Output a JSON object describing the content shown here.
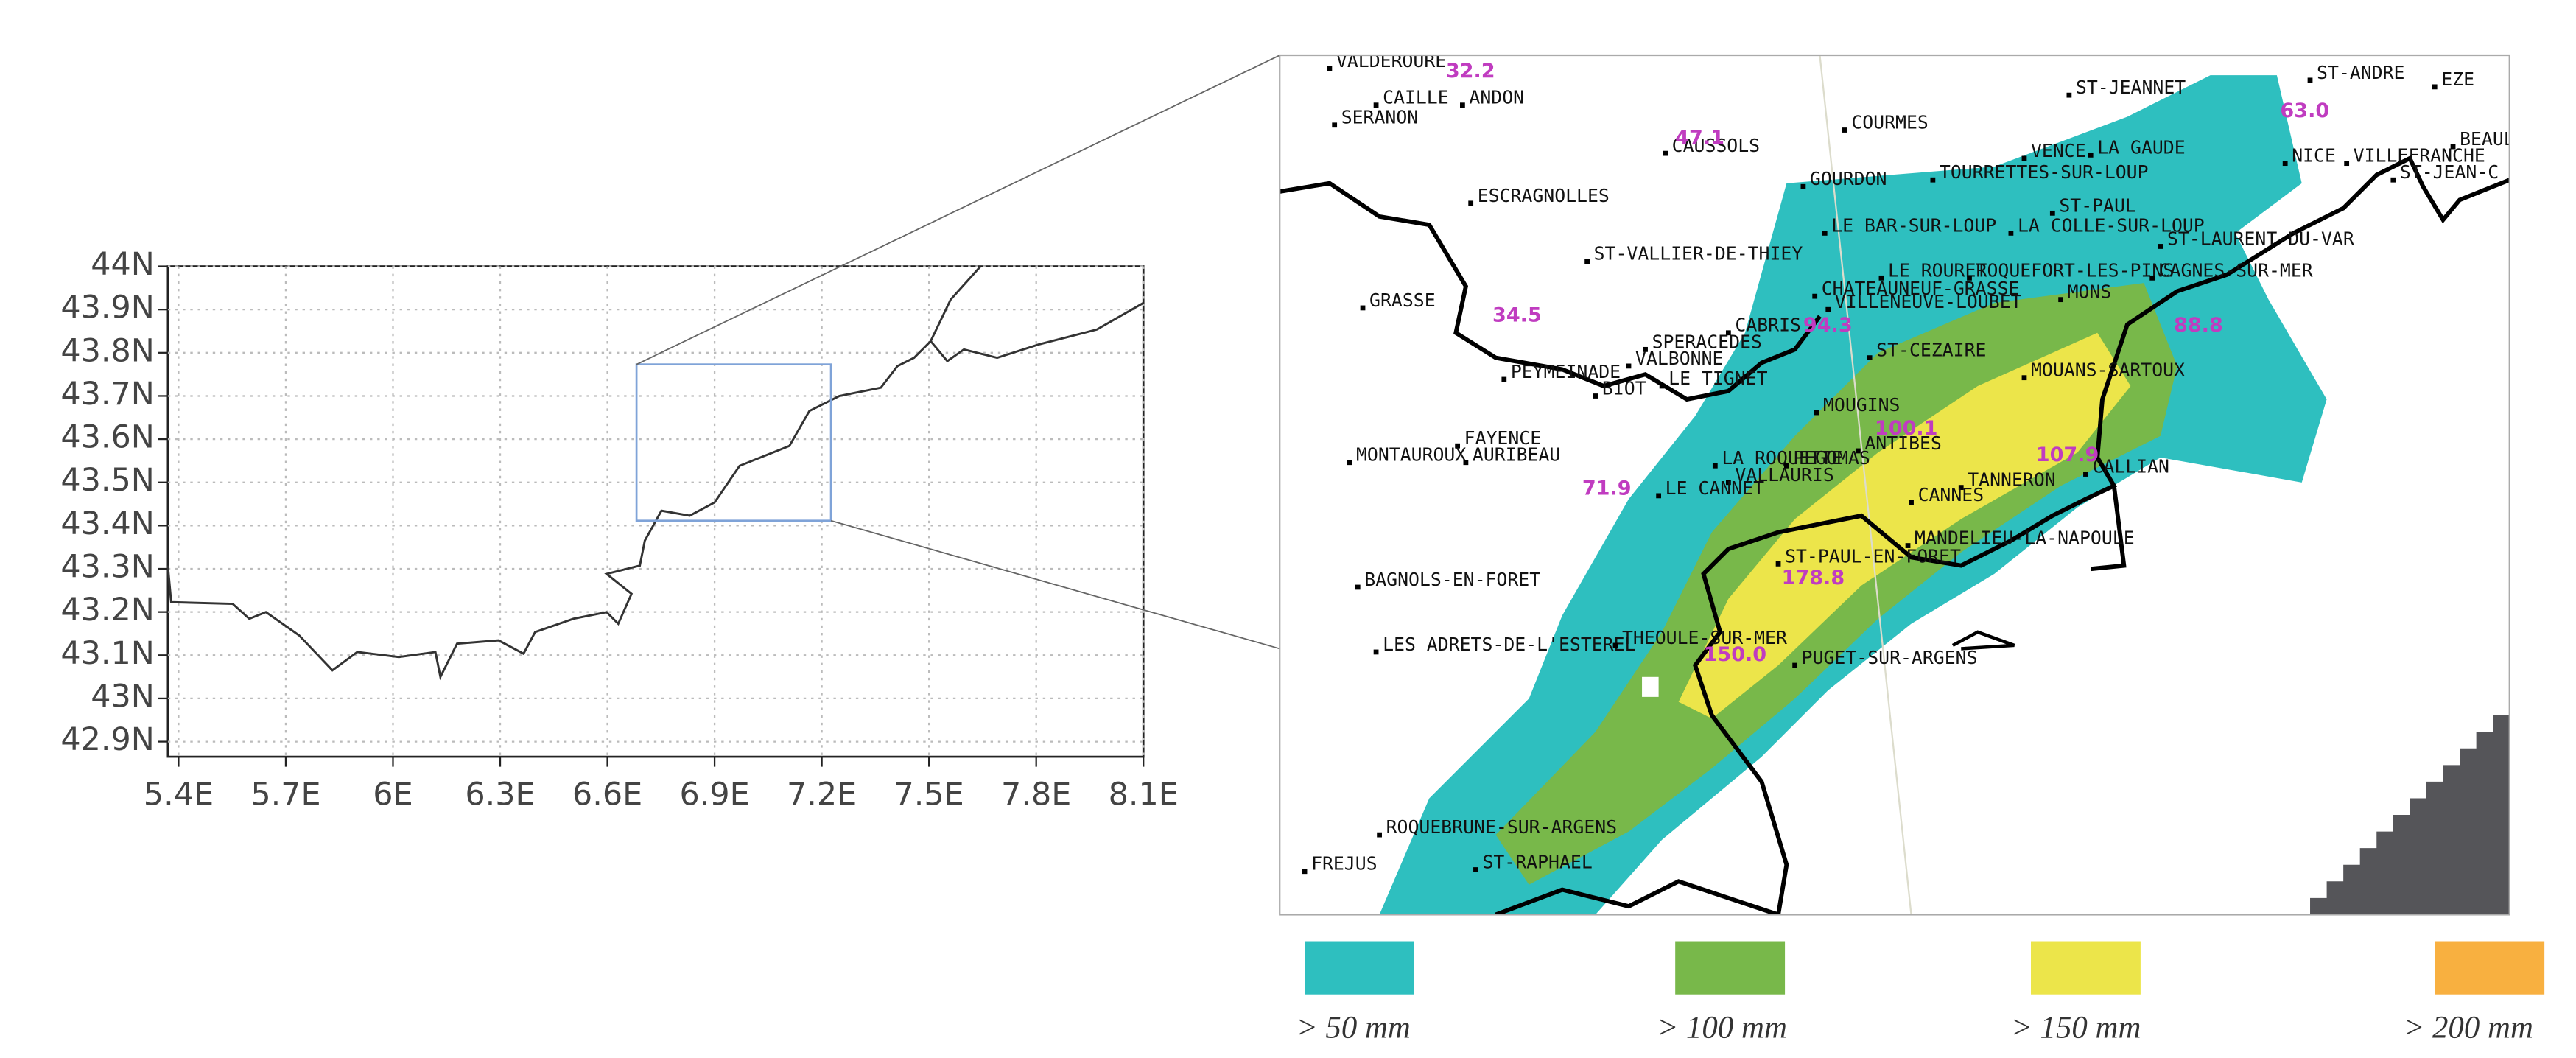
{
  "overview_map": {
    "xlim": [
      5.37,
      8.1
    ],
    "ylim": [
      42.865,
      44
    ],
    "xticks": [
      {
        "value": 5.4,
        "label": "5.4E"
      },
      {
        "value": 5.7,
        "label": "5.7E"
      },
      {
        "value": 6,
        "label": "6E"
      },
      {
        "value": 6.3,
        "label": "6.3E"
      },
      {
        "value": 6.6,
        "label": "6.6E"
      },
      {
        "value": 6.9,
        "label": "6.9E"
      },
      {
        "value": 7.2,
        "label": "7.2E"
      },
      {
        "value": 7.5,
        "label": "7.5E"
      },
      {
        "value": 7.8,
        "label": "7.8E"
      },
      {
        "value": 8.1,
        "label": "8.1E"
      }
    ],
    "yticks": [
      {
        "value": 42.9,
        "label": "42.9N"
      },
      {
        "value": 43,
        "label": "43N"
      },
      {
        "value": 43.1,
        "label": "43.1N"
      },
      {
        "value": 43.2,
        "label": "43.2N"
      },
      {
        "value": 43.3,
        "label": "43.3N"
      },
      {
        "value": 43.4,
        "label": "43.4N"
      },
      {
        "value": 43.5,
        "label": "43.5N"
      },
      {
        "value": 43.6,
        "label": "43.6N"
      },
      {
        "value": 43.7,
        "label": "43.7N"
      },
      {
        "value": 43.8,
        "label": "43.8N"
      },
      {
        "value": 43.9,
        "label": "43.9N"
      },
      {
        "value": 44,
        "label": "44N"
      }
    ],
    "grid": true
  },
  "detail_map": {
    "towns": [
      "VALDEROURE",
      "CAILLE",
      "ANDON",
      "SERANON",
      "CAUSSOLS",
      "COURMES",
      "ST-JEANNET",
      "ST-ANDRE",
      "EZE",
      "VENCE",
      "LA GAUDE",
      "NICE",
      "VILLEFRANCHE",
      "BEAULIEU",
      "ST-JEAN-C",
      "GOURDON",
      "TOURRETTES-SUR-LOUP",
      "ESCRAGNOLLES",
      "ST-PAUL",
      "LE BAR-SUR-LOUP",
      "LA COLLE-SUR-LOUP",
      "ST-LAURENT-DU-VAR",
      "ST-VALLIER-DE-THIEY",
      "LE ROURET",
      "ROQUEFORT-LES-PINS",
      "CAGNES-SUR-MER",
      "CHATEAUNEUF-GRASSE",
      "VILLENEUVE-LOUBET",
      "MONS",
      "GRASSE",
      "CABRIS",
      "SPERACEDES",
      "VALBONNE",
      "ST-CEZAIRE",
      "PEYMEINADE",
      "LE TIGNET",
      "BIOT",
      "MOUANS-SARTOUX",
      "MOUGINS",
      "ANTIBES",
      "CALLIAN",
      "FAYENCE",
      "MONTAUROUX",
      "AURIBEAU",
      "LA ROQUETTE",
      "PEGOMAS",
      "VALLAURIS",
      "TANNERON",
      "LE CANNET",
      "CANNES",
      "MANDELIEU-LA-NAPOULE",
      "ST-PAUL-EN-FORET",
      "BAGNOLS-EN-FORET",
      "LES ADRETS-DE-L'ESTEREL",
      "THEOULE-SUR-MER",
      "PUGET-SUR-ARGENS",
      "ROQUEBRUNE-SUR-ARGENS",
      "FREJUS",
      "ST-RAPHAEL"
    ],
    "rain_labels": [
      "32.2",
      "47.1",
      "34.5",
      "63.0",
      "88.8",
      "94.3",
      "100.1",
      "107.9",
      "71.9",
      "178.8",
      "150.0"
    ]
  },
  "legend": [
    {
      "label": "> 50 mm",
      "color": "#2ebfbf"
    },
    {
      "label": "> 100 mm",
      "color": "#78b84a"
    },
    {
      "label": "> 150 mm",
      "color": "#ece54a"
    },
    {
      "label": "> 200 mm",
      "color": "#f8b040"
    }
  ]
}
